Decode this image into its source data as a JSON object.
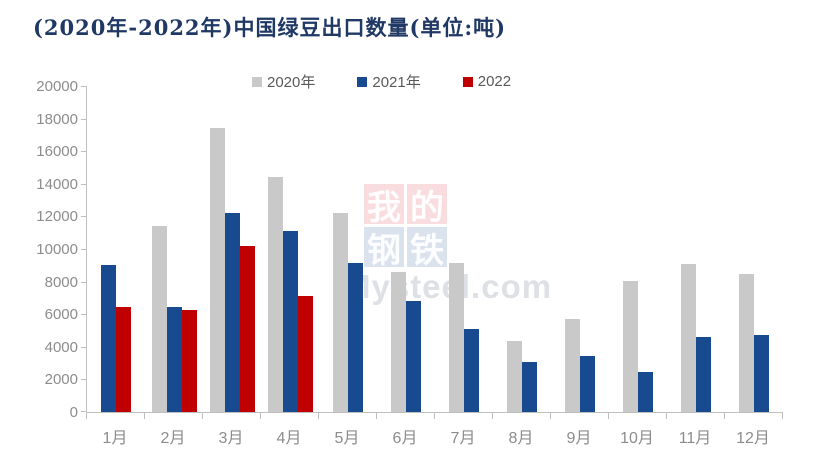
{
  "title": "(2020年-2022年)中国绿豆出口数量(单位:吨)",
  "watermark": {
    "blocks": [
      [
        "我",
        "的"
      ],
      [
        "钢",
        "铁"
      ]
    ],
    "text": "Mysteel.com"
  },
  "colors": {
    "title": "#1f3864",
    "bar_2020": "#c9c9c9",
    "bar_2021": "#174a8f",
    "bar_2022": "#c00000",
    "axis_line": "#bfbfbf",
    "tick_label": "#8c8c8c",
    "legend_text": "#595959"
  },
  "chart_data": {
    "type": "bar",
    "title": "(2020年-2022年)中国绿豆出口数量(单位:吨)",
    "unit": "吨",
    "categories": [
      "1月",
      "2月",
      "3月",
      "4月",
      "5月",
      "6月",
      "7月",
      "8月",
      "9月",
      "10月",
      "11月",
      "12月"
    ],
    "series": [
      {
        "name": "2020年",
        "color": "#c9c9c9",
        "values": [
          null,
          11400,
          17450,
          14400,
          12200,
          8600,
          9150,
          4350,
          5700,
          8050,
          9100,
          8500
        ]
      },
      {
        "name": "2021年",
        "color": "#174a8f",
        "values": [
          9000,
          6450,
          12200,
          11100,
          9150,
          6800,
          5100,
          3100,
          3450,
          2450,
          4600,
          4700
        ]
      },
      {
        "name": "2022",
        "color": "#c00000",
        "values": [
          6450,
          6250,
          10200,
          7100,
          null,
          null,
          null,
          null,
          null,
          null,
          null,
          null
        ]
      }
    ],
    "ylim": [
      0,
      20000
    ],
    "y_ticks": [
      0,
      2000,
      4000,
      6000,
      8000,
      10000,
      12000,
      14000,
      16000,
      18000,
      20000
    ],
    "grid": false,
    "legend_position": "top"
  }
}
